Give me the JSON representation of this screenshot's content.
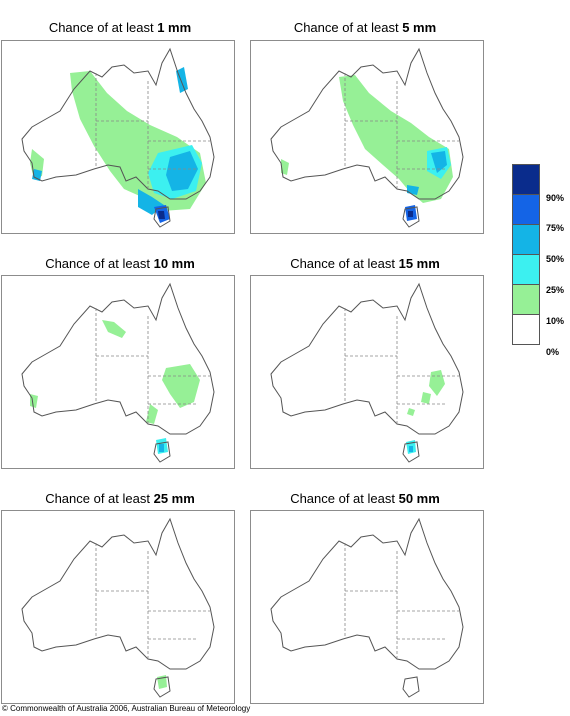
{
  "panels": [
    {
      "prefix": "Chance of at least ",
      "amount": "1 mm"
    },
    {
      "prefix": "Chance of at least ",
      "amount": "5 mm"
    },
    {
      "prefix": "Chance of at least ",
      "amount": "10 mm"
    },
    {
      "prefix": "Chance of at least ",
      "amount": "15 mm"
    },
    {
      "prefix": "Chance of at least ",
      "amount": "25 mm"
    },
    {
      "prefix": "Chance of at least ",
      "amount": "50 mm"
    }
  ],
  "legend": {
    "labels": [
      "90%",
      "75%",
      "50%",
      "25%",
      "10%",
      "0%"
    ],
    "colors": [
      "#0a2c8c",
      "#1464e6",
      "#14b4e6",
      "#3cf0f0",
      "#96f096",
      "#ffffff"
    ]
  },
  "copyright": "© Commonwealth of Australia 2006, Australian Bureau of Meteorology"
}
